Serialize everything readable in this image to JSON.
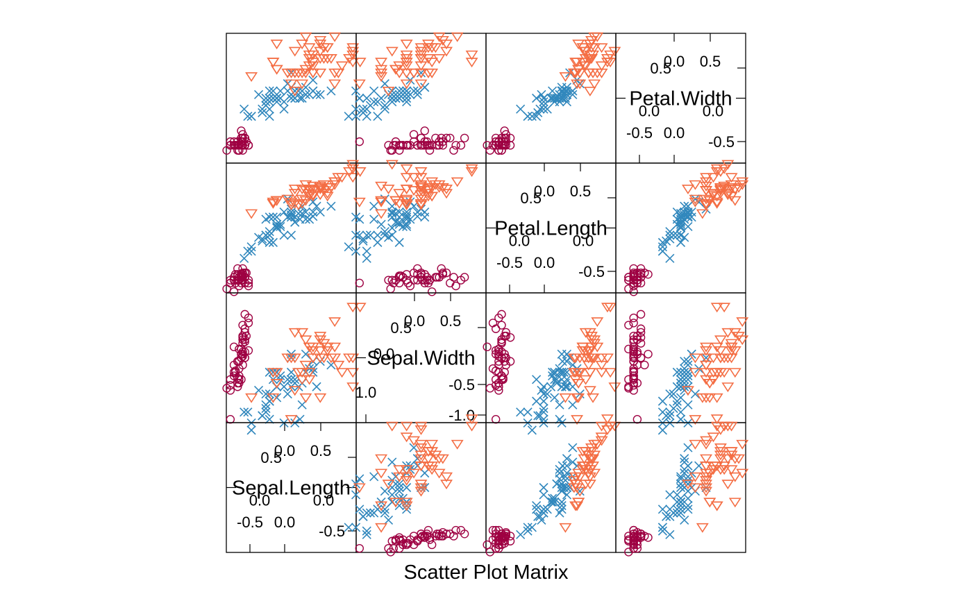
{
  "chart_data": {
    "type": "scatter",
    "title": "",
    "xlabel": "Scatter Plot Matrix",
    "variables": [
      "Sepal.Length",
      "Sepal.Width",
      "Petal.Length",
      "Petal.Width"
    ],
    "axis_range": [
      -0.8,
      0.8
    ],
    "grid": false,
    "legend": "none",
    "group_styles": [
      {
        "marker": "circle",
        "color": "#9E0142"
      },
      {
        "marker": "cross",
        "color": "#3288BD"
      },
      {
        "marker": "triangle-down",
        "color": "#F46D43"
      }
    ],
    "diagonal_ticks": [
      {
        "upper_top_labels": [
          "0.0",
          "0.5"
        ],
        "upper_side_labels": [
          "0.5"
        ],
        "center_labels": [
          "0.0",
          "0.0"
        ],
        "lower_bottom_labels": [
          "-0.5",
          "0.0"
        ],
        "lower_side_labels": [
          "-0.5"
        ]
      },
      {
        "upper_top_labels": [
          "0.0",
          "0.5"
        ],
        "upper_side_labels": [
          "0.5"
        ],
        "center_labels": [
          "0.0"
        ],
        "lower_bottom_labels": [
          "1.0"
        ],
        "lower_side_labels": [
          "-0.5",
          "-1.0"
        ]
      },
      {
        "upper_top_labels": [
          "0.0",
          "0.5"
        ],
        "upper_side_labels": [
          "0.5"
        ],
        "center_labels": [
          "0.0",
          "0.0"
        ],
        "lower_bottom_labels": [
          "-0.5",
          "0.0"
        ],
        "lower_side_labels": [
          "-0.5"
        ]
      },
      {
        "upper_top_labels": [
          "0.0",
          "0.5"
        ],
        "upper_side_labels": [
          "0.5"
        ],
        "center_labels": [
          "0.0",
          "0.0"
        ],
        "lower_bottom_labels": [
          "-0.5",
          "0.0"
        ],
        "lower_side_labels": [
          "-0.5"
        ]
      }
    ],
    "groups": [
      {
        "Sepal.Length": [
          -0.67,
          -0.72,
          -0.77,
          -0.79,
          -0.69,
          -0.64,
          -0.79,
          -0.69,
          -0.84,
          -0.72,
          -0.64,
          -0.74,
          -0.74,
          -0.89,
          -0.59,
          -0.64,
          -0.64,
          -0.67,
          -0.62,
          -0.67,
          -0.64,
          -0.67,
          -0.79,
          -0.67,
          -0.74,
          -0.69,
          -0.69,
          -0.64,
          -0.67,
          -0.77,
          -0.74,
          -0.64,
          -0.67,
          -0.59,
          -0.72,
          -0.72,
          -0.59,
          -0.72,
          -0.84,
          -0.69,
          -0.69,
          -0.84,
          -0.84,
          -0.69,
          -0.67,
          -0.74,
          -0.67,
          -0.79,
          -0.64,
          -0.72
        ],
        "Sepal.Width": [
          0.05,
          -0.35,
          -0.18,
          -0.25,
          0.12,
          0.35,
          -0.1,
          0.0,
          -0.45,
          -0.3,
          0.22,
          -0.05,
          -0.4,
          -0.42,
          0.48,
          0.6,
          0.4,
          0.08,
          0.3,
          0.25,
          0.0,
          0.2,
          0.15,
          -0.1,
          -0.05,
          -0.3,
          0.0,
          0.08,
          0.02,
          -0.2,
          -0.28,
          0.0,
          0.45,
          0.55,
          -0.25,
          -0.15,
          0.1,
          0.12,
          -0.38,
          0.0,
          0.05,
          -0.85,
          -0.3,
          0.05,
          0.28,
          -0.35,
          0.3,
          -0.2,
          0.25,
          -0.05
        ],
        "Petal.Length": [
          -0.72,
          -0.72,
          -0.76,
          -0.68,
          -0.72,
          -0.62,
          -0.72,
          -0.68,
          -0.72,
          -0.68,
          -0.68,
          -0.64,
          -0.72,
          -0.84,
          -0.8,
          -0.68,
          -0.76,
          -0.72,
          -0.62,
          -0.68,
          -0.62,
          -0.68,
          -0.88,
          -0.62,
          -0.56,
          -0.66,
          -0.64,
          -0.68,
          -0.72,
          -0.64,
          -0.66,
          -0.68,
          -0.68,
          -0.72,
          -0.68,
          -0.8,
          -0.76,
          -0.72,
          -0.76,
          -0.68,
          -0.76,
          -0.76,
          -0.76,
          -0.64,
          -0.56,
          -0.72,
          -0.64,
          -0.72,
          -0.68,
          -0.72
        ],
        "Petal.Width": [
          -0.65,
          -0.65,
          -0.65,
          -0.65,
          -0.65,
          -0.55,
          -0.6,
          -0.65,
          -0.65,
          -0.72,
          -0.65,
          -0.65,
          -0.72,
          -0.72,
          -0.65,
          -0.55,
          -0.55,
          -0.6,
          -0.6,
          -0.6,
          -0.65,
          -0.55,
          -0.65,
          -0.5,
          -0.65,
          -0.65,
          -0.55,
          -0.65,
          -0.65,
          -0.65,
          -0.65,
          -0.55,
          -0.72,
          -0.65,
          -0.65,
          -0.65,
          -0.65,
          -0.72,
          -0.65,
          -0.65,
          -0.6,
          -0.6,
          -0.65,
          -0.45,
          -0.55,
          -0.6,
          -0.65,
          -0.65,
          -0.65,
          -0.65
        ]
      },
      {
        "Sepal.Length": [
          0.4,
          0.3,
          0.55,
          -0.3,
          0.1,
          -0.2,
          0.2,
          -0.6,
          0.15,
          -0.45,
          -0.55,
          -0.15,
          -0.1,
          0.0,
          -0.25,
          0.25,
          -0.25,
          -0.3,
          0.05,
          -0.35,
          0.0,
          0.0,
          0.15,
          -0.1,
          0.05,
          0.2,
          0.35,
          0.3,
          -0.05,
          -0.3,
          -0.4,
          -0.4,
          -0.35,
          -0.05,
          -0.3,
          0.0,
          0.3,
          0.12,
          -0.2,
          -0.35,
          -0.35,
          0.0,
          -0.3,
          -0.55,
          -0.2,
          -0.2,
          -0.15,
          0.05,
          -0.65,
          -0.2
        ],
        "Sepal.Width": [
          -0.05,
          -0.05,
          -0.1,
          -0.85,
          -0.4,
          -0.4,
          0.05,
          -0.75,
          -0.35,
          -0.45,
          -1.0,
          -0.25,
          -0.9,
          -0.3,
          -0.3,
          -0.15,
          -0.2,
          -0.5,
          -0.9,
          -0.7,
          0.0,
          -0.4,
          -0.65,
          -0.4,
          -0.3,
          -0.2,
          -0.4,
          -0.15,
          -0.3,
          -0.6,
          -0.8,
          -0.8,
          -0.5,
          -0.5,
          -0.2,
          0.05,
          -0.2,
          -0.85,
          -0.2,
          -0.75,
          -0.65,
          -0.2,
          -0.6,
          -0.9,
          -0.55,
          -0.2,
          -0.3,
          -0.35,
          -0.75,
          -0.4
        ],
        "Petal.Length": [
          0.22,
          0.16,
          0.3,
          -0.1,
          0.2,
          0.15,
          0.22,
          -0.32,
          0.2,
          -0.13,
          -0.26,
          0.02,
          -0.1,
          0.22,
          -0.2,
          0.12,
          0.15,
          -0.05,
          0.15,
          -0.1,
          0.26,
          -0.1,
          0.3,
          0.22,
          0.08,
          0.12,
          0.3,
          0.36,
          0.15,
          -0.2,
          -0.15,
          -0.18,
          -0.1,
          0.4,
          0.15,
          0.15,
          0.22,
          0.12,
          0.02,
          -0.1,
          0.12,
          0.18,
          -0.1,
          -0.32,
          0.05,
          0.05,
          0.05,
          0.08,
          -0.42,
          0.0
        ],
        "Petal.Width": [
          0.05,
          0.1,
          0.1,
          0.0,
          0.1,
          0.0,
          0.15,
          -0.25,
          0.0,
          0.05,
          -0.25,
          0.1,
          -0.15,
          0.05,
          0.0,
          0.05,
          0.1,
          -0.15,
          0.1,
          -0.1,
          0.35,
          0.0,
          0.1,
          -0.05,
          0.0,
          0.05,
          0.05,
          0.25,
          0.1,
          -0.25,
          -0.15,
          -0.2,
          -0.1,
          0.2,
          0.1,
          0.15,
          0.1,
          0.0,
          0.0,
          0.0,
          -0.05,
          0.05,
          -0.05,
          -0.25,
          0.0,
          -0.05,
          0.0,
          0.0,
          -0.15,
          0.0
        ]
      },
      {
        "Sepal.Length": [
          0.2,
          -0.2,
          0.55,
          0.2,
          0.3,
          0.8,
          -0.55,
          0.65,
          0.4,
          0.6,
          0.3,
          0.25,
          0.45,
          -0.25,
          -0.2,
          0.25,
          0.3,
          0.85,
          0.85,
          0.0,
          0.5,
          -0.25,
          0.85,
          0.15,
          0.4,
          0.6,
          0.1,
          0.05,
          0.25,
          0.6,
          0.7,
          0.95,
          0.25,
          0.15,
          0.05,
          0.85,
          0.15,
          0.3,
          0.0,
          0.5,
          0.4,
          0.5,
          -0.2,
          0.45,
          0.4,
          0.4,
          0.2,
          0.3,
          0.05,
          -0.05
        ],
        "Sepal.Width": [
          0.25,
          -0.35,
          0.0,
          -0.1,
          0.0,
          0.0,
          -0.55,
          -0.1,
          -0.55,
          0.5,
          0.15,
          -0.3,
          0.0,
          -0.55,
          -0.2,
          0.15,
          0.0,
          0.7,
          -0.4,
          -0.85,
          0.15,
          -0.2,
          -0.2,
          -0.3,
          0.25,
          0.15,
          -0.2,
          0.0,
          -0.2,
          0.0,
          -0.2,
          0.7,
          -0.2,
          -0.2,
          -0.45,
          0.0,
          0.35,
          0.1,
          0.0,
          0.1,
          0.1,
          0.1,
          -0.35,
          0.2,
          0.3,
          0.0,
          -0.55,
          0.0,
          0.35,
          0.0
        ],
        "Petal.Length": [
          0.6,
          0.38,
          0.56,
          0.52,
          0.58,
          0.78,
          0.2,
          0.7,
          0.58,
          0.64,
          0.44,
          0.48,
          0.52,
          0.36,
          0.38,
          0.44,
          0.52,
          0.82,
          0.88,
          0.36,
          0.56,
          0.34,
          0.82,
          0.34,
          0.56,
          0.64,
          0.32,
          0.34,
          0.54,
          0.6,
          0.7,
          0.78,
          0.54,
          0.4,
          0.54,
          0.7,
          0.54,
          0.52,
          0.32,
          0.48,
          0.54,
          0.44,
          0.38,
          0.6,
          0.56,
          0.46,
          0.38,
          0.46,
          0.48,
          0.4
        ],
        "Petal.Width": [
          0.85,
          0.4,
          0.55,
          0.35,
          0.6,
          0.55,
          0.3,
          0.35,
          0.35,
          0.85,
          0.5,
          0.45,
          0.55,
          0.5,
          0.75,
          0.7,
          0.35,
          0.6,
          0.65,
          0.2,
          0.7,
          0.5,
          0.5,
          0.35,
          0.55,
          0.35,
          0.35,
          0.35,
          0.55,
          0.2,
          0.45,
          0.5,
          0.6,
          0.2,
          0.1,
          0.7,
          0.75,
          0.35,
          0.35,
          0.55,
          0.75,
          0.7,
          0.4,
          0.7,
          0.8,
          0.65,
          0.4,
          0.45,
          0.65,
          0.35
        ]
      }
    ]
  }
}
